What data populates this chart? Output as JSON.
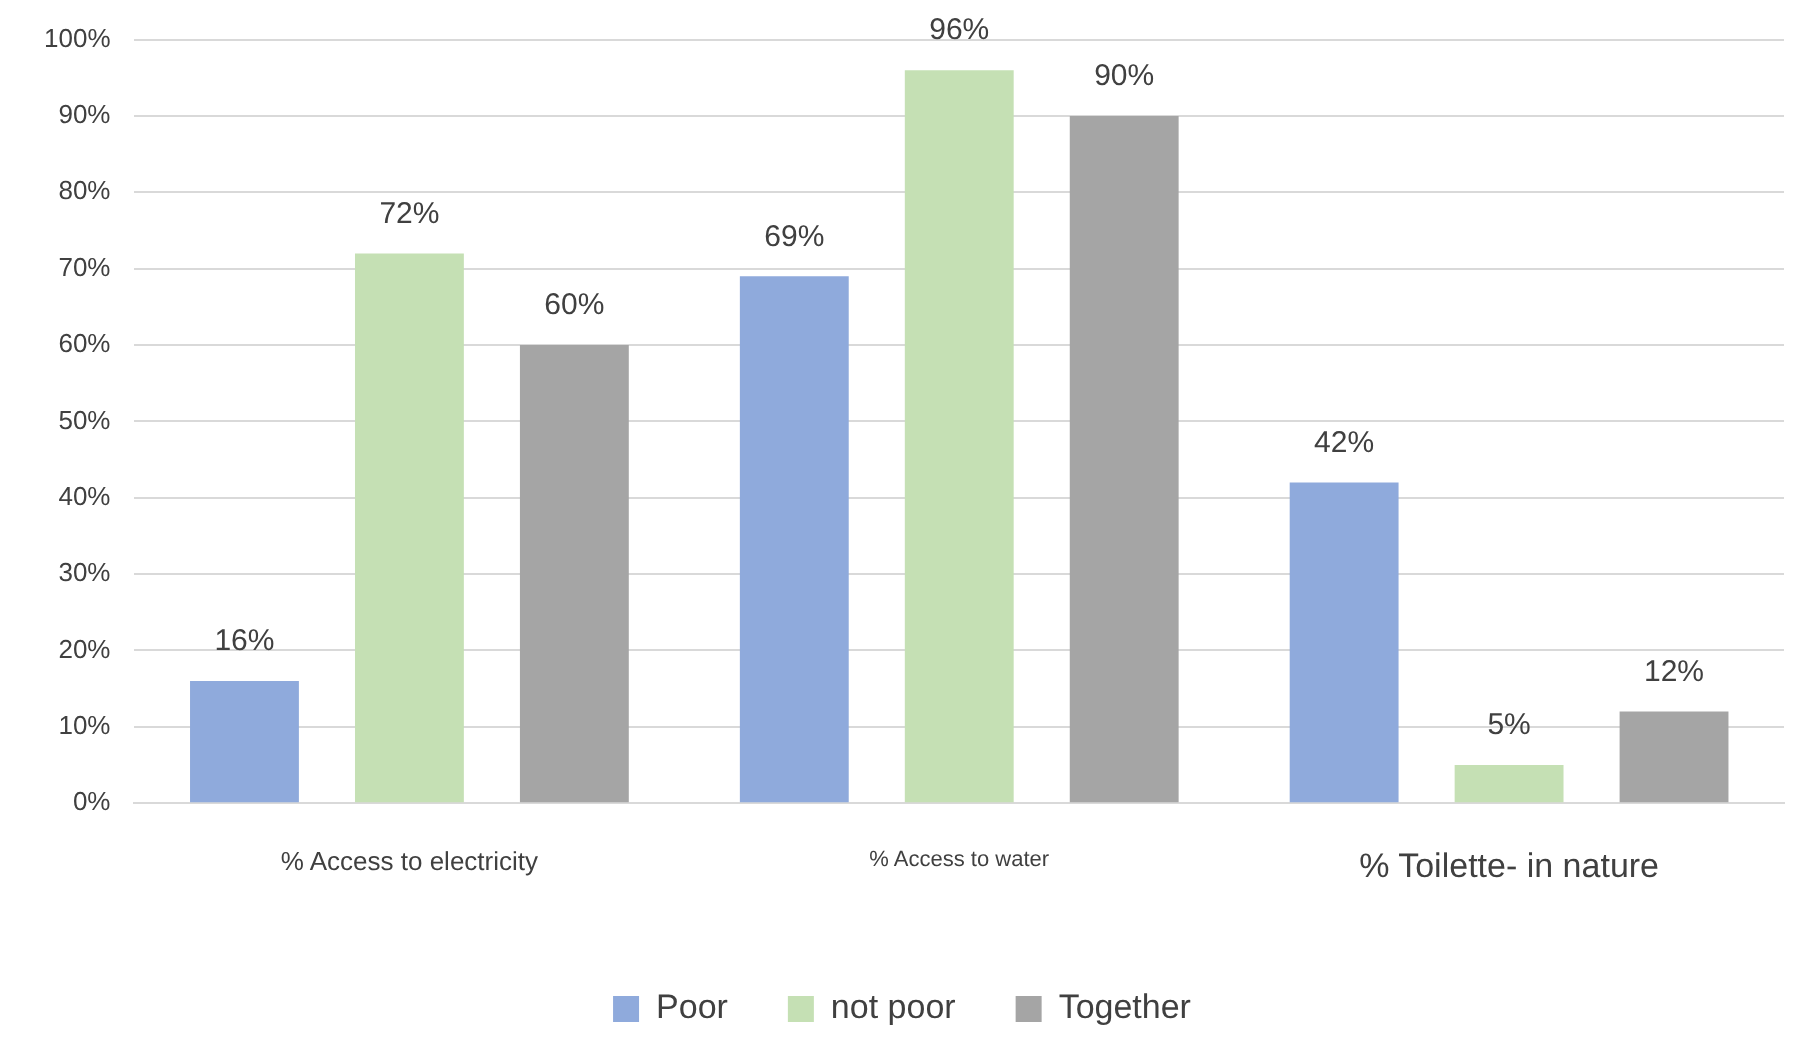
{
  "chart_data": {
    "type": "bar",
    "categories": [
      "% Access to electricity",
      "% Access to water",
      "% Toilette- in nature"
    ],
    "series": [
      {
        "name": "Poor",
        "color": "#8faadc",
        "values": [
          16,
          69,
          42
        ],
        "value_labels": [
          "16%",
          "69%",
          "42%"
        ]
      },
      {
        "name": "not poor",
        "color": "#c5e0b4",
        "values": [
          72,
          96,
          5
        ],
        "value_labels": [
          "72%",
          "96%",
          "5%"
        ]
      },
      {
        "name": "Together",
        "color": "#a5a5a5",
        "values": [
          60,
          90,
          12
        ],
        "value_labels": [
          "60%",
          "90%",
          "12%"
        ]
      }
    ],
    "ylim": [
      0,
      100
    ],
    "yticks": [
      {
        "value": 0,
        "label": "0%"
      },
      {
        "value": 10,
        "label": "10%"
      },
      {
        "value": 20,
        "label": "20%"
      },
      {
        "value": 30,
        "label": "30%"
      },
      {
        "value": 40,
        "label": "40%"
      },
      {
        "value": 50,
        "label": "50%"
      },
      {
        "value": 60,
        "label": "60%"
      },
      {
        "value": 70,
        "label": "70%"
      },
      {
        "value": 80,
        "label": "80%"
      },
      {
        "value": 90,
        "label": "90%"
      },
      {
        "value": 100,
        "label": "100%"
      }
    ],
    "grid": "y",
    "legend": "bottom"
  }
}
